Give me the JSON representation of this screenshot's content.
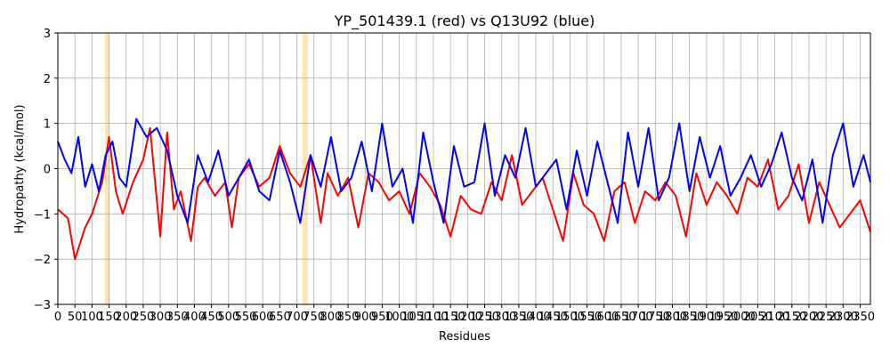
{
  "chart_data": {
    "type": "line",
    "title": "YP_501439.1 (red) vs Q13U92 (blue)",
    "xlabel": "Residues",
    "ylabel": "Hydropathy (kcal/mol)",
    "xlim": [
      0,
      2380
    ],
    "ylim": [
      -3,
      3
    ],
    "xticks": [
      0,
      50,
      100,
      150,
      200,
      250,
      300,
      350,
      400,
      450,
      500,
      550,
      600,
      650,
      700,
      750,
      800,
      850,
      900,
      950,
      1000,
      1050,
      1100,
      1150,
      1200,
      1250,
      1300,
      1350,
      1400,
      1450,
      1500,
      1550,
      1600,
      1650,
      1700,
      1750,
      1800,
      1850,
      1900,
      1950,
      2000,
      2050,
      2100,
      2150,
      2200,
      2250,
      2300,
      2350
    ],
    "yticks": [
      -3,
      -2,
      -1,
      0,
      1,
      2,
      3
    ],
    "grid": true,
    "highlight_regions": [
      [
        138,
        152
      ],
      [
        716,
        732
      ]
    ],
    "highlight_color": "#ffe4b5",
    "series": [
      {
        "color": "#ff0000",
        "x": [
          0,
          30,
          50,
          80,
          100,
          130,
          150,
          170,
          190,
          220,
          250,
          270,
          300,
          320,
          340,
          360,
          390,
          410,
          430,
          460,
          490,
          510,
          530,
          560,
          590,
          620,
          650,
          680,
          710,
          740,
          770,
          790,
          820,
          850,
          880,
          910,
          940,
          970,
          1000,
          1030,
          1060,
          1090,
          1120,
          1150,
          1180,
          1210,
          1240,
          1270,
          1300,
          1330,
          1360,
          1390,
          1420,
          1450,
          1480,
          1510,
          1540,
          1570,
          1600,
          1630,
          1660,
          1690,
          1720,
          1750,
          1780,
          1810,
          1840,
          1870,
          1900,
          1930,
          1960,
          1990,
          2020,
          2050,
          2080,
          2110,
          2140,
          2170,
          2200,
          2230,
          2260,
          2290,
          2320,
          2350,
          2380
        ],
        "y": [
          -0.9,
          -1.1,
          -2.0,
          -1.3,
          -1.0,
          -0.3,
          0.7,
          -0.5,
          -1.0,
          -0.3,
          0.2,
          0.9,
          -1.5,
          0.8,
          -0.9,
          -0.5,
          -1.6,
          -0.4,
          -0.2,
          -0.6,
          -0.3,
          -1.3,
          -0.2,
          0.1,
          -0.4,
          -0.2,
          0.5,
          -0.1,
          -0.4,
          0.3,
          -1.2,
          -0.1,
          -0.6,
          -0.2,
          -1.3,
          -0.1,
          -0.3,
          -0.7,
          -0.5,
          -1.0,
          -0.1,
          -0.4,
          -0.8,
          -1.5,
          -0.6,
          -0.9,
          -1.0,
          -0.3,
          -0.7,
          0.3,
          -0.8,
          -0.5,
          -0.2,
          -0.9,
          -1.6,
          -0.1,
          -0.8,
          -1.0,
          -1.6,
          -0.5,
          -0.3,
          -1.2,
          -0.5,
          -0.7,
          -0.3,
          -0.6,
          -1.5,
          -0.1,
          -0.8,
          -0.3,
          -0.6,
          -1.0,
          -0.2,
          -0.4,
          0.2,
          -0.9,
          -0.6,
          0.1,
          -1.2,
          -0.3,
          -0.8,
          -1.3,
          -1.0,
          -0.7,
          -1.4
        ]
      },
      {
        "color": "#0000ff",
        "x": [
          0,
          20,
          40,
          60,
          80,
          100,
          120,
          140,
          160,
          180,
          200,
          230,
          260,
          290,
          320,
          350,
          380,
          410,
          440,
          470,
          500,
          530,
          560,
          590,
          620,
          650,
          680,
          710,
          740,
          770,
          800,
          830,
          860,
          890,
          920,
          950,
          980,
          1010,
          1040,
          1070,
          1100,
          1130,
          1160,
          1190,
          1220,
          1250,
          1280,
          1310,
          1340,
          1370,
          1400,
          1430,
          1460,
          1490,
          1520,
          1550,
          1580,
          1610,
          1640,
          1670,
          1700,
          1730,
          1760,
          1790,
          1820,
          1850,
          1880,
          1910,
          1940,
          1970,
          2000,
          2030,
          2060,
          2090,
          2120,
          2150,
          2180,
          2210,
          2240,
          2270,
          2300,
          2330,
          2360,
          2380
        ],
        "y": [
          0.6,
          0.2,
          -0.1,
          0.7,
          -0.4,
          0.1,
          -0.5,
          0.3,
          0.6,
          -0.2,
          -0.4,
          1.1,
          0.7,
          0.9,
          0.4,
          -0.6,
          -1.2,
          0.3,
          -0.3,
          0.4,
          -0.6,
          -0.2,
          0.2,
          -0.5,
          -0.7,
          0.4,
          -0.3,
          -1.2,
          0.3,
          -0.4,
          0.7,
          -0.5,
          -0.2,
          0.6,
          -0.5,
          1.0,
          -0.4,
          0.0,
          -1.2,
          0.8,
          -0.3,
          -1.2,
          0.5,
          -0.4,
          -0.3,
          1.0,
          -0.6,
          0.3,
          -0.2,
          0.9,
          -0.4,
          -0.1,
          0.2,
          -0.9,
          0.4,
          -0.6,
          0.6,
          -0.3,
          -1.2,
          0.8,
          -0.4,
          0.9,
          -0.7,
          -0.2,
          1.0,
          -0.5,
          0.7,
          -0.2,
          0.5,
          -0.6,
          -0.2,
          0.3,
          -0.4,
          0.1,
          0.8,
          -0.2,
          -0.7,
          0.2,
          -1.2,
          0.3,
          1.0,
          -0.4,
          0.3,
          -0.3
        ]
      }
    ]
  }
}
